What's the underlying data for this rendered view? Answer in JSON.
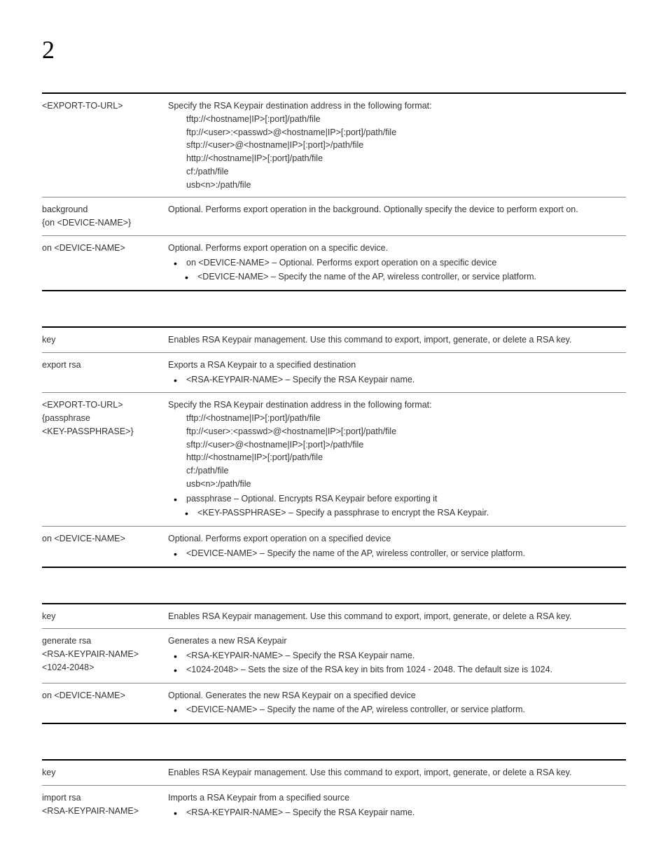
{
  "chapter_number": "2",
  "tables": [
    {
      "rows": [
        {
          "param": [
            "<EXPORT-TO-URL>"
          ],
          "desc_lines": [
            "Specify the RSA Keypair destination address in the following format:"
          ],
          "indent_lines": [
            "tftp://<hostname|IP>[:port]/path/file",
            "ftp://<user>:<passwd>@<hostname|IP>[:port]/path/file",
            "sftp://<user>@<hostname|IP>[:port]>/path/file",
            "http://<hostname|IP>[:port]/path/file",
            "cf:/path/file",
            "usb<n>:/path/file"
          ]
        },
        {
          "param": [
            "background",
            "{on <DEVICE-NAME>}"
          ],
          "desc_lines": [
            "Optional. Performs export operation in the background. Optionally specify the device to perform export on."
          ]
        },
        {
          "param": [
            "on <DEVICE-NAME>"
          ],
          "desc_lines": [
            "Optional. Performs export operation on a specific device."
          ],
          "bullets": [
            "on <DEVICE-NAME> – Optional. Performs export operation on a specific device"
          ],
          "nested_bullets": [
            "<DEVICE-NAME> – Specify the name of the AP, wireless controller, or service platform."
          ]
        }
      ]
    },
    {
      "header": {
        "param": "key",
        "desc": "Enables RSA Keypair management. Use this command to export, import, generate, or delete a RSA key."
      },
      "rows": [
        {
          "param": [
            "export rsa"
          ],
          "desc_lines": [
            "Exports a RSA Keypair to a specified destination"
          ],
          "bullets": [
            "<RSA-KEYPAIR-NAME> – Specify the RSA Keypair name."
          ]
        },
        {
          "param": [
            "<EXPORT-TO-URL>",
            "{passphrase",
            "<KEY-PASSPHRASE>}"
          ],
          "desc_lines": [
            "Specify the RSA Keypair destination address in the following format:"
          ],
          "indent_lines": [
            "tftp://<hostname|IP>[:port]/path/file",
            "ftp://<user>:<passwd>@<hostname|IP>[:port]/path/file",
            "sftp://<user>@<hostname|IP>[:port]>/path/file",
            "http://<hostname|IP>[:port]/path/file",
            "cf:/path/file",
            "usb<n>:/path/file"
          ],
          "bullets": [
            "passphrase – Optional. Encrypts RSA Keypair before exporting it"
          ],
          "nested_bullets": [
            "<KEY-PASSPHRASE> – Specify a passphrase to encrypt the RSA Keypair."
          ]
        },
        {
          "param": [
            "on <DEVICE-NAME>"
          ],
          "desc_lines": [
            "Optional. Performs export operation on a specified device"
          ],
          "bullets": [
            "<DEVICE-NAME> – Specify the name of the AP, wireless controller, or service platform."
          ]
        }
      ]
    },
    {
      "header": {
        "param": "key",
        "desc": "Enables RSA Keypair management. Use this command to export, import, generate, or delete a RSA key."
      },
      "rows": [
        {
          "param": [
            "generate rsa",
            "<RSA-KEYPAIR-NAME>",
            "<1024-2048>"
          ],
          "desc_lines": [
            "Generates a new RSA Keypair"
          ],
          "bullets": [
            "<RSA-KEYPAIR-NAME> – Specify the RSA Keypair name.",
            "<1024-2048> – Sets the size of the RSA key in bits from 1024 - 2048. The default size is 1024."
          ]
        },
        {
          "param": [
            "on <DEVICE-NAME>"
          ],
          "desc_lines": [
            "Optional. Generates the new RSA Keypair on a specified device"
          ],
          "bullets": [
            "<DEVICE-NAME> – Specify the name of the AP, wireless controller, or service platform."
          ]
        }
      ]
    },
    {
      "header": {
        "param": "key",
        "desc": "Enables RSA Keypair management. Use this command to export, import, generate, or delete a RSA key."
      },
      "rows": [
        {
          "param": [
            "import rsa",
            "<RSA-KEYPAIR-NAME>"
          ],
          "desc_lines": [
            "Imports a RSA Keypair from a specified source"
          ],
          "bullets": [
            "<RSA-KEYPAIR-NAME> – Specify the RSA Keypair name."
          ]
        }
      ]
    }
  ]
}
